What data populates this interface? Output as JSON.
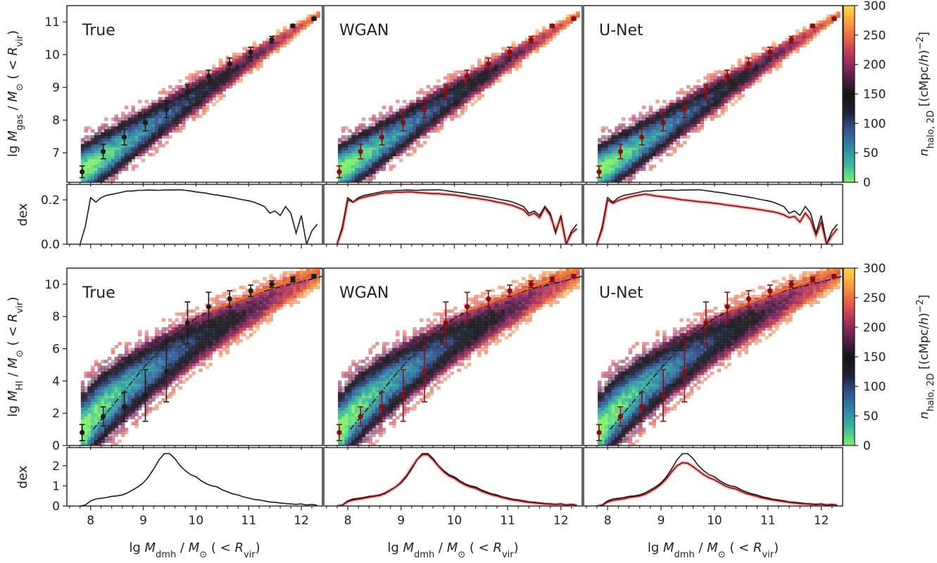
{
  "chart_data": {
    "type": "heatmap",
    "x_label": "lg M_dmh / M_⊙ (< R_vir)",
    "x_ticks": [
      8,
      9,
      10,
      11,
      12
    ],
    "xlim": [
      7.55,
      12.4
    ],
    "colorbar": {
      "label": "n_halo,2D [(cMpc/h)^-2]",
      "ticks": [
        0,
        50,
        100,
        150,
        200,
        250,
        300
      ],
      "range": [
        0,
        300
      ],
      "colormap": [
        "#7ef06a",
        "#38b99c",
        "#2f86a5",
        "#33508f",
        "#1d2033",
        "#141414",
        "#5a1f4e",
        "#a8305f",
        "#e35a4a",
        "#f99a3b",
        "#fbd84b"
      ]
    },
    "panel_labels": [
      "True",
      "WGAN",
      "U-Net"
    ],
    "rows": [
      {
        "name": "gas",
        "y_label": "lg M_gas / M_⊙ (< R_vir)",
        "y_ticks": [
          7,
          8,
          9,
          10,
          11
        ],
        "ylim": [
          6.1,
          11.5
        ],
        "band": {
          "x0": 7.9,
          "y0": 6.5,
          "x1": 12.2,
          "y1": 11.1,
          "width_lo": 1.1,
          "width_hi": 0.15
        },
        "medians_true": {
          "x": [
            7.84,
            8.24,
            8.64,
            9.04,
            9.44,
            9.84,
            10.24,
            10.64,
            11.04,
            11.44,
            11.84,
            12.24
          ],
          "y": [
            6.42,
            7.04,
            7.48,
            7.92,
            8.33,
            8.86,
            9.33,
            9.72,
            10.08,
            10.46,
            10.88,
            11.1
          ],
          "err": [
            0.18,
            0.22,
            0.24,
            0.25,
            0.25,
            0.23,
            0.2,
            0.18,
            0.15,
            0.1,
            0.04,
            0.04
          ]
        },
        "medians_pred": {
          "x": [
            7.84,
            8.24,
            8.64,
            9.04,
            9.44,
            9.84,
            10.24,
            10.64,
            11.04,
            11.44,
            11.84,
            12.24
          ],
          "y": [
            6.42,
            7.04,
            7.48,
            7.92,
            8.33,
            8.86,
            9.33,
            9.72,
            10.08,
            10.46,
            10.88,
            11.1
          ],
          "err": [
            0.18,
            0.22,
            0.24,
            0.25,
            0.25,
            0.23,
            0.2,
            0.18,
            0.15,
            0.1,
            0.04,
            0.04
          ]
        },
        "fit_dashdot": null,
        "fit_orange": null
      },
      {
        "name": "HI",
        "y_label": "lg M_HI / M_⊙ (< R_vir)",
        "y_ticks": [
          0,
          2,
          4,
          6,
          8,
          10
        ],
        "ylim": [
          0,
          11
        ],
        "band": {
          "x0": 7.9,
          "y0": 1.0,
          "x1": 12.3,
          "y1": 10.6,
          "width_lo": 3.0,
          "width_hi": 0.8
        },
        "medians_true": {
          "x": [
            7.84,
            8.24,
            8.64,
            9.04,
            9.44,
            9.84,
            10.24,
            10.64,
            11.04,
            11.44,
            11.84,
            12.24
          ],
          "y": [
            0.8,
            1.8,
            2.4,
            3.1,
            4.6,
            7.6,
            8.6,
            9.1,
            9.6,
            10.0,
            10.3,
            10.5
          ],
          "err": [
            0.5,
            0.6,
            0.9,
            1.6,
            1.9,
            1.3,
            0.9,
            0.5,
            0.35,
            0.2,
            0.15,
            0.1
          ]
        },
        "medians_pred": {
          "x": [
            7.84,
            8.24,
            8.64,
            9.04,
            9.44,
            9.84,
            10.24,
            10.64,
            11.04,
            11.44,
            11.84,
            12.24
          ],
          "y": [
            0.8,
            1.8,
            2.4,
            3.1,
            4.6,
            7.6,
            8.6,
            9.1,
            9.6,
            10.0,
            10.3,
            10.5
          ],
          "err": [
            0.5,
            0.6,
            0.9,
            1.6,
            1.9,
            1.3,
            0.9,
            0.5,
            0.35,
            0.2,
            0.15,
            0.1
          ]
        },
        "fit_dashdot": {
          "x": [
            8.05,
            8.5,
            9.0,
            9.5,
            10.0,
            10.5,
            11.0,
            11.5,
            12.0,
            12.4
          ],
          "y": [
            1.0,
            2.8,
            4.8,
            6.6,
            7.9,
            8.7,
            9.3,
            9.75,
            10.15,
            10.5
          ]
        },
        "fit_orange": {
          "x": [
            10.2,
            12.4
          ],
          "y": [
            8.3,
            11.0
          ]
        }
      }
    ],
    "residual_rows": [
      {
        "y_label": "dex",
        "y_ticks": [
          0.0,
          0.2
        ],
        "ylim": [
          0,
          0.27
        ],
        "x": [
          7.8,
          7.9,
          8.0,
          8.1,
          8.2,
          8.3,
          8.4,
          8.5,
          8.6,
          8.7,
          8.8,
          8.9,
          9.0,
          9.1,
          9.2,
          9.3,
          9.4,
          9.5,
          9.6,
          9.7,
          9.8,
          9.9,
          10.0,
          10.1,
          10.2,
          10.3,
          10.4,
          10.5,
          10.6,
          10.7,
          10.8,
          10.9,
          11.0,
          11.1,
          11.2,
          11.3,
          11.4,
          11.5,
          11.6,
          11.7,
          11.8,
          11.9,
          12.0,
          12.1,
          12.2,
          12.3
        ],
        "true": [
          0.0,
          0.08,
          0.21,
          0.19,
          0.21,
          0.22,
          0.225,
          0.23,
          0.235,
          0.24,
          0.24,
          0.243,
          0.243,
          0.245,
          0.244,
          0.243,
          0.245,
          0.245,
          0.245,
          0.246,
          0.243,
          0.24,
          0.236,
          0.233,
          0.23,
          0.225,
          0.222,
          0.218,
          0.214,
          0.21,
          0.205,
          0.2,
          0.196,
          0.19,
          0.18,
          0.17,
          0.14,
          0.15,
          0.13,
          0.17,
          0.14,
          0.05,
          0.13,
          0.0,
          0.06,
          0.09
        ],
        "wgan": [
          0.0,
          0.07,
          0.2,
          0.19,
          0.205,
          0.212,
          0.218,
          0.222,
          0.228,
          0.232,
          0.232,
          0.235,
          0.234,
          0.236,
          0.236,
          0.233,
          0.232,
          0.23,
          0.228,
          0.228,
          0.226,
          0.224,
          0.222,
          0.218,
          0.215,
          0.21,
          0.208,
          0.204,
          0.2,
          0.196,
          0.19,
          0.186,
          0.18,
          0.174,
          0.165,
          0.155,
          0.13,
          0.14,
          0.12,
          0.165,
          0.13,
          0.06,
          0.12,
          0.0,
          0.05,
          0.07
        ],
        "unet": [
          0.0,
          0.07,
          0.2,
          0.185,
          0.198,
          0.205,
          0.212,
          0.218,
          0.222,
          0.226,
          0.222,
          0.218,
          0.215,
          0.212,
          0.208,
          0.204,
          0.2,
          0.198,
          0.195,
          0.192,
          0.19,
          0.188,
          0.185,
          0.182,
          0.178,
          0.175,
          0.172,
          0.168,
          0.165,
          0.162,
          0.158,
          0.154,
          0.15,
          0.146,
          0.14,
          0.132,
          0.12,
          0.125,
          0.1,
          0.14,
          0.11,
          0.04,
          0.1,
          0.0,
          0.04,
          0.07
        ]
      },
      {
        "y_label": "dex",
        "y_ticks": [
          0,
          1,
          2
        ],
        "ylim": [
          0,
          2.9
        ],
        "x": [
          7.8,
          7.9,
          8.0,
          8.1,
          8.2,
          8.3,
          8.4,
          8.5,
          8.6,
          8.7,
          8.8,
          8.9,
          9.0,
          9.1,
          9.2,
          9.3,
          9.4,
          9.5,
          9.6,
          9.7,
          9.8,
          9.9,
          10.0,
          10.1,
          10.2,
          10.3,
          10.4,
          10.5,
          10.6,
          10.7,
          10.8,
          10.9,
          11.0,
          11.1,
          11.2,
          11.3,
          11.4,
          11.5,
          11.6,
          11.7,
          11.8,
          11.9,
          12.0,
          12.1,
          12.2,
          12.3
        ],
        "true": [
          0.0,
          0.05,
          0.25,
          0.35,
          0.38,
          0.42,
          0.48,
          0.5,
          0.55,
          0.65,
          0.8,
          0.95,
          1.15,
          1.45,
          1.85,
          2.3,
          2.6,
          2.6,
          2.35,
          2.0,
          1.75,
          1.55,
          1.45,
          1.25,
          1.1,
          1.0,
          0.95,
          0.8,
          0.7,
          0.6,
          0.55,
          0.45,
          0.4,
          0.33,
          0.3,
          0.25,
          0.2,
          0.18,
          0.15,
          0.12,
          0.1,
          0.08,
          0.1,
          0.05,
          0.08,
          0.04
        ],
        "wgan": [
          0.0,
          0.04,
          0.22,
          0.3,
          0.34,
          0.38,
          0.44,
          0.48,
          0.52,
          0.62,
          0.78,
          0.95,
          1.18,
          1.5,
          1.9,
          2.3,
          2.55,
          2.55,
          2.3,
          1.98,
          1.7,
          1.5,
          1.38,
          1.2,
          1.05,
          0.95,
          0.88,
          0.75,
          0.65,
          0.56,
          0.5,
          0.42,
          0.36,
          0.3,
          0.27,
          0.22,
          0.18,
          0.16,
          0.13,
          0.1,
          0.09,
          0.07,
          0.09,
          0.04,
          0.07,
          0.03
        ],
        "unet": [
          0.0,
          0.03,
          0.2,
          0.28,
          0.32,
          0.35,
          0.42,
          0.46,
          0.5,
          0.58,
          0.72,
          0.88,
          1.08,
          1.35,
          1.7,
          2.0,
          2.15,
          2.12,
          1.95,
          1.75,
          1.55,
          1.4,
          1.3,
          1.15,
          1.0,
          0.9,
          0.85,
          0.72,
          0.62,
          0.55,
          0.48,
          0.4,
          0.35,
          0.3,
          0.26,
          0.22,
          0.18,
          0.15,
          0.12,
          0.1,
          0.08,
          0.06,
          0.08,
          0.04,
          0.06,
          0.03
        ]
      }
    ],
    "colors": {
      "true_line": "#1c1c1c",
      "pred_line": "#8b0d0d",
      "pred_band": "#e9a3a3",
      "fit_orange": "#f07f1a",
      "fit_dashdot": "#1c1c1c"
    }
  }
}
